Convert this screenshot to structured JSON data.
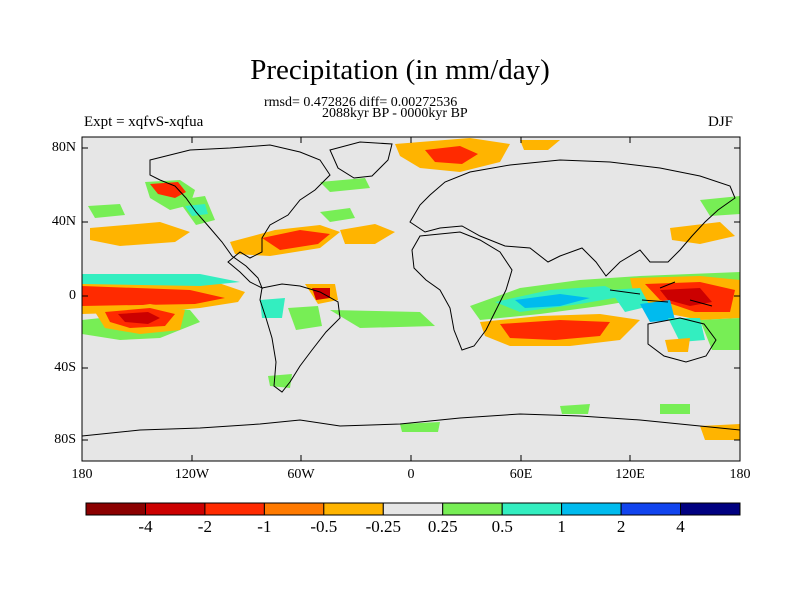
{
  "plot": {
    "title": "Precipitation (in mm/day)",
    "stats": "rmsd= 0.472826  diff= 0.00272536",
    "period": "2088kyr BP - 0000kyr BP",
    "experiment": "Expt = xqfvS-xqfua",
    "season": "DJF"
  },
  "axes": {
    "lat_labels": [
      "80N",
      "40N",
      "0",
      "40S",
      "80S"
    ],
    "lon_labels": [
      "180",
      "120W",
      "60W",
      "0",
      "60E",
      "120E",
      "180"
    ]
  },
  "colorbar": {
    "labels": [
      "-4",
      "-2",
      "-1",
      "-0.5",
      "-0.25",
      "0.25",
      "0.5",
      "1",
      "2",
      "4"
    ],
    "colors": [
      "#8b0000",
      "#cc0000",
      "#ff2a00",
      "#ff7a00",
      "#ffb400",
      "#e6e6e6",
      "#77ee55",
      "#33eec0",
      "#00bbee",
      "#1144ee",
      "#000080"
    ]
  },
  "colors": {
    "background": "#e6e6e6",
    "coast": "#000000"
  }
}
